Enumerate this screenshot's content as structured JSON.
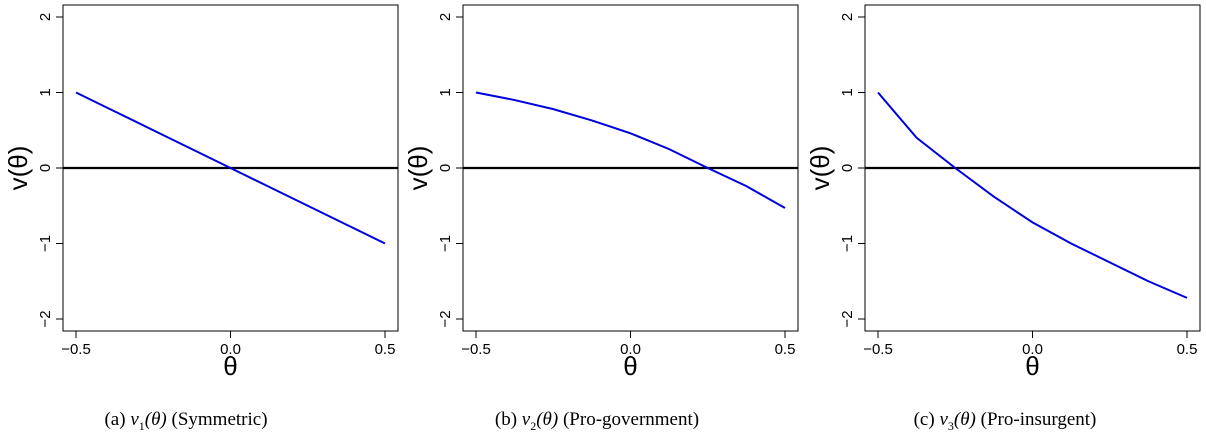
{
  "chart_data": [
    {
      "type": "line",
      "caption": {
        "prefix": "(a) ",
        "fn": "v",
        "sub": "1",
        "arg": "(θ)",
        "suffix": " (Symmetric)"
      },
      "xlabel": "θ",
      "ylabel": "v(θ)",
      "xlim": [
        -0.5,
        0.5
      ],
      "ylim": [
        -2,
        2
      ],
      "xticks": [
        -0.5,
        0.0,
        0.5
      ],
      "xtick_labels": [
        "−0.5",
        "0.0",
        "0.5"
      ],
      "yticks": [
        -2,
        -1,
        0,
        1,
        2
      ],
      "ytick_labels": [
        "−2",
        "−1",
        "0",
        "1",
        "2"
      ],
      "hline": 0,
      "series_color": "#0000dd",
      "x": [
        -0.5,
        -0.375,
        -0.25,
        -0.125,
        0.0,
        0.125,
        0.25,
        0.375,
        0.5
      ],
      "y": [
        1.0,
        0.75,
        0.5,
        0.25,
        0.0,
        -0.25,
        -0.5,
        -0.75,
        -1.0
      ]
    },
    {
      "type": "line",
      "caption": {
        "prefix": "(b) ",
        "fn": "v",
        "sub": "2",
        "arg": "(θ)",
        "suffix": " (Pro-government)"
      },
      "xlabel": "θ",
      "ylabel": "v(θ)",
      "xlim": [
        -0.5,
        0.5
      ],
      "ylim": [
        -2,
        2
      ],
      "xticks": [
        -0.5,
        0.0,
        0.5
      ],
      "xtick_labels": [
        "−0.5",
        "0.0",
        "0.5"
      ],
      "yticks": [
        -2,
        -1,
        0,
        1,
        2
      ],
      "ytick_labels": [
        "−2",
        "−1",
        "0",
        "1",
        "2"
      ],
      "hline": 0,
      "series_color": "#0000dd",
      "x": [
        -0.5,
        -0.375,
        -0.25,
        -0.125,
        0.0,
        0.125,
        0.25,
        0.375,
        0.5
      ],
      "y": [
        1.0,
        0.9,
        0.78,
        0.63,
        0.46,
        0.25,
        0.0,
        -0.24,
        -0.53
      ]
    },
    {
      "type": "line",
      "caption": {
        "prefix": "(c) ",
        "fn": "v",
        "sub": "3",
        "arg": "(θ)",
        "suffix": " (Pro-insurgent)"
      },
      "xlabel": "θ",
      "ylabel": "v(θ)",
      "xlim": [
        -0.5,
        0.5
      ],
      "ylim": [
        -2,
        2
      ],
      "xticks": [
        -0.5,
        0.0,
        0.5
      ],
      "xtick_labels": [
        "−0.5",
        "0.0",
        "0.5"
      ],
      "yticks": [
        -2,
        -1,
        0,
        1,
        2
      ],
      "ytick_labels": [
        "−2",
        "−1",
        "0",
        "1",
        "2"
      ],
      "hline": 0,
      "series_color": "#0000dd",
      "x": [
        -0.5,
        -0.375,
        -0.25,
        -0.125,
        0.0,
        0.125,
        0.25,
        0.375,
        0.5
      ],
      "y": [
        1.0,
        0.4,
        0.0,
        -0.38,
        -0.72,
        -1.0,
        -1.25,
        -1.5,
        -1.72
      ]
    }
  ]
}
